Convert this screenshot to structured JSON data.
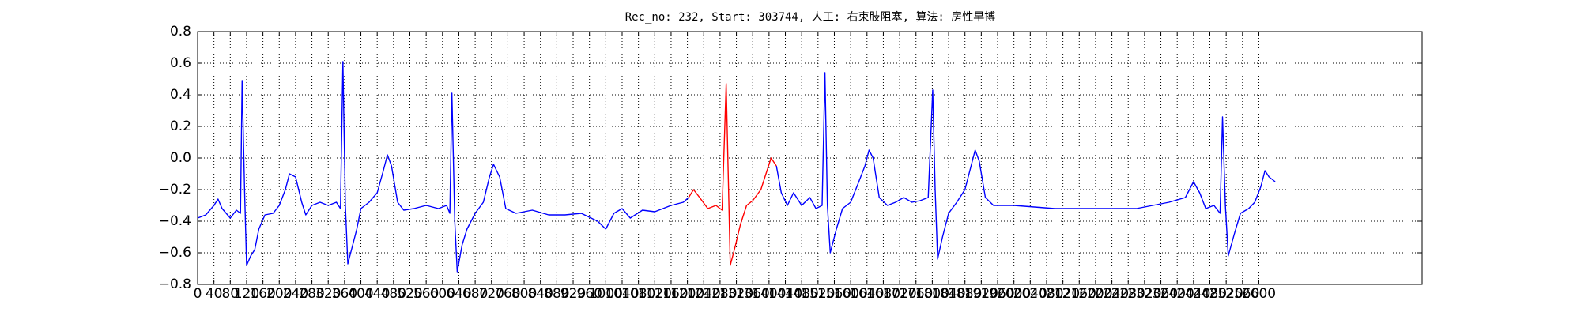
{
  "chart_data": {
    "type": "line",
    "title": "Rec_no: 232, Start: 303744, 人工: 右束肢阻塞, 算法: 房性早搏",
    "xlim": [
      0,
      3000
    ],
    "xticks": [
      0,
      40,
      80,
      120,
      160,
      200,
      240,
      280,
      320,
      360,
      400,
      440,
      480,
      520,
      560,
      600,
      640,
      680,
      720,
      760,
      800,
      840,
      880,
      920,
      960,
      1000,
      1040,
      1080,
      1120,
      1160,
      1200,
      1240,
      1280,
      1320,
      1360,
      1400,
      1440,
      1480,
      1520,
      1560,
      1600,
      1640,
      1680,
      1720,
      1760,
      1800,
      1840,
      1880,
      1920,
      1960,
      2000,
      2040,
      2080,
      2120,
      2160,
      2200,
      2240,
      2280,
      2320,
      2360,
      2400,
      2440,
      2480,
      2520,
      2560,
      2600
    ],
    "ylim": [
      -0.8,
      0.8
    ],
    "yticks": [
      {
        "value": -0.8,
        "label": "−0.8"
      },
      {
        "value": -0.6,
        "label": "−0.6"
      },
      {
        "value": -0.4,
        "label": "−0.4"
      },
      {
        "value": -0.2,
        "label": "−0.2"
      },
      {
        "value": 0,
        "label": "0.0"
      },
      0.2,
      0.4,
      0.6,
      0.8
    ],
    "grid": true,
    "series": [
      {
        "color": "#0000ff",
        "x": [
          0,
          20,
          40,
          50,
          60,
          80,
          95,
          105,
          109,
          115,
          120,
          130,
          140,
          150,
          165,
          185,
          200,
          215,
          225,
          240,
          255,
          265,
          280,
          300,
          320,
          340,
          350,
          356,
          362,
          368,
          380,
          390,
          400,
          420,
          440,
          455,
          465,
          475,
          490,
          505,
          530,
          560,
          590,
          610,
          618,
          623,
          630,
          636,
          648,
          660,
          680,
          700,
          715,
          725,
          740,
          755,
          780,
          820,
          860,
          900,
          940,
          980,
          1000,
          1020,
          1040,
          1060,
          1090,
          1120,
          1160,
          1190,
          1203,
          1300,
          1418,
          1430,
          1445,
          1460,
          1480,
          1500,
          1515,
          1530,
          1537,
          1543,
          1550,
          1565,
          1580,
          1600,
          1620,
          1635,
          1645,
          1655,
          1670,
          1690,
          1710,
          1730,
          1750,
          1770,
          1790,
          1801,
          1807,
          1813,
          1825,
          1840,
          1860,
          1880,
          1895,
          1905,
          1915,
          1930,
          1950,
          2000,
          2100,
          2200,
          2300,
          2380,
          2420,
          2440,
          2455,
          2470,
          2490,
          2505,
          2511,
          2518,
          2525,
          2540,
          2555,
          2575,
          2590,
          2605,
          2615,
          2625,
          2640
        ],
        "values": [
          -0.38,
          -0.36,
          -0.3,
          -0.26,
          -0.32,
          -0.38,
          -0.33,
          -0.35,
          0.49,
          -0.2,
          -0.68,
          -0.62,
          -0.58,
          -0.45,
          -0.36,
          -0.35,
          -0.3,
          -0.2,
          -0.1,
          -0.12,
          -0.28,
          -0.36,
          -0.3,
          -0.28,
          -0.3,
          -0.28,
          -0.32,
          0.61,
          -0.3,
          -0.67,
          -0.55,
          -0.45,
          -0.32,
          -0.28,
          -0.22,
          -0.08,
          0.02,
          -0.05,
          -0.28,
          -0.33,
          -0.32,
          -0.3,
          -0.32,
          -0.3,
          -0.35,
          0.41,
          -0.4,
          -0.72,
          -0.55,
          -0.45,
          -0.35,
          -0.28,
          -0.12,
          -0.04,
          -0.12,
          -0.32,
          -0.35,
          -0.33,
          -0.36,
          -0.36,
          -0.35,
          -0.4,
          -0.45,
          -0.35,
          -0.32,
          -0.38,
          -0.33,
          -0.34,
          -0.3,
          -0.28,
          -0.25,
          null,
          -0.05,
          -0.22,
          -0.3,
          -0.22,
          -0.3,
          -0.25,
          -0.32,
          -0.3,
          0.54,
          -0.3,
          -0.6,
          -0.45,
          -0.32,
          -0.28,
          -0.15,
          -0.05,
          0.05,
          0.0,
          -0.25,
          -0.3,
          -0.28,
          -0.25,
          -0.28,
          -0.27,
          -0.25,
          0.43,
          -0.2,
          -0.64,
          -0.5,
          -0.35,
          -0.28,
          -0.2,
          -0.05,
          0.05,
          -0.02,
          -0.25,
          -0.3,
          -0.3,
          -0.32,
          -0.32,
          -0.32,
          -0.28,
          -0.25,
          -0.15,
          -0.22,
          -0.32,
          -0.3,
          -0.35,
          0.26,
          -0.3,
          -0.62,
          -0.48,
          -0.35,
          -0.32,
          -0.28,
          -0.18,
          -0.08,
          -0.12,
          -0.15
        ]
      },
      {
        "color": "#ff0000",
        "x": [
          1203,
          1215,
          1230,
          1250,
          1270,
          1285,
          1295,
          1300,
          1305,
          1318,
          1330,
          1345,
          1360,
          1380,
          1395,
          1405,
          1418
        ],
        "values": [
          -0.25,
          -0.2,
          -0.25,
          -0.32,
          -0.3,
          -0.33,
          0.47,
          -0.1,
          -0.68,
          -0.55,
          -0.42,
          -0.3,
          -0.27,
          -0.2,
          -0.08,
          0.0,
          -0.05
        ]
      }
    ]
  }
}
